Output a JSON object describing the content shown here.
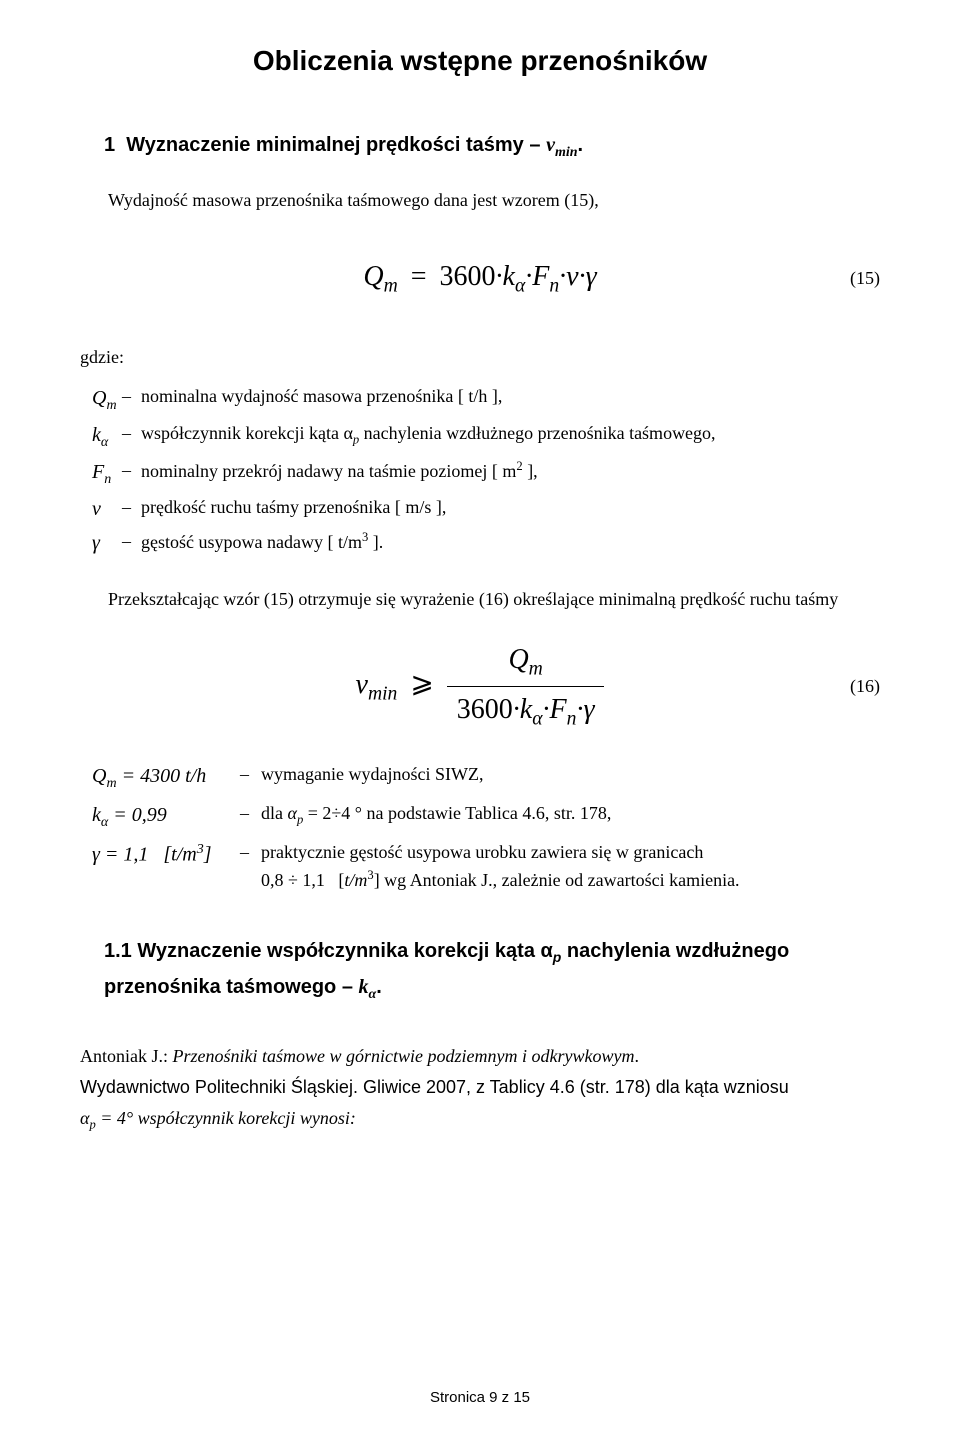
{
  "title": "Obliczenia wstępne przenośników",
  "section1": {
    "heading_prefix": "1",
    "heading": "Wyznaczenie minimalnej prędkości taśmy –",
    "heading_sym": "v",
    "heading_sub": "min",
    "intro": "Wydajność masowa przenośnika taśmowego dana jest wzorem (15),",
    "eq15": {
      "lhs": "Q",
      "lhs_sub": "m",
      "rhs_coeff": "3600",
      "k": "k",
      "k_sub": "α",
      "F": "F",
      "F_sub": "n",
      "v": "v",
      "g": "γ",
      "num": "(15)"
    },
    "gdzie": "gdzie:",
    "defs": [
      {
        "sym": "Q",
        "sub": "m",
        "desc": "nominalna wydajność masowa przenośnika [ t/h ],"
      },
      {
        "sym": "k",
        "sub": "α",
        "desc": "współczynnik korekcji kąta α<span class='sub'>p</span> nachylenia wzdłużnego przenośnika taśmowego,"
      },
      {
        "sym": "F",
        "sub": "n",
        "desc": "nominalny przekrój nadawy na taśmie poziomej [ m<span class='sup'>2</span> ],"
      },
      {
        "sym": "v",
        "sub": "",
        "desc": "prędkość ruchu taśmy przenośnika [ m/s ],"
      },
      {
        "sym": "γ",
        "sub": "",
        "desc": "gęstość usypowa nadawy [ t/m<span class='sup'>3</span> ]."
      }
    ],
    "transform": "Przekształcając wzór (15) otrzymuje się wyrażenie (16) określające minimalną prędkość ruchu taśmy",
    "eq16": {
      "lhs": "v",
      "lhs_sub": "min",
      "op": "⩾",
      "num_sym": "Q",
      "num_sub": "m",
      "den_coeff": "3600",
      "k": "k",
      "k_sub": "α",
      "F": "F",
      "F_sub": "n",
      "g": "γ",
      "eqnum": "(16)"
    },
    "values": [
      {
        "sym": "Q<span class='sub'>m</span> = 4300 <span>t/h</span>",
        "desc": "wymaganie wydajności SIWZ,"
      },
      {
        "sym": "k<span class='sub'>α</span> = 0,99",
        "desc": "dla <span class='math'>α<span class='sub'>p</span></span> = 2÷4 ° na podstawie Tablica 4.6, str. 178,"
      },
      {
        "sym": "γ = 1,1&nbsp;&nbsp;&nbsp;[<span>t/m</span><span class='sup'>3</span>]",
        "desc": "praktycznie gęstość usypowa urobku zawiera się w granicach<br><span class='cont'>0,8 ÷ 1,1&nbsp;&nbsp;&nbsp;[<span class='math'>t/m</span><span class='sup'>3</span>] wg Antoniak J., zależnie od zawartości kamienia.</span>"
      }
    ]
  },
  "section11": {
    "heading": "1.1 Wyznaczenie współczynnika korekcji kąta α<span class='sub' style='font-style:italic'>p</span> nachylenia wzdłużnego przenośnika taśmowego – <span class='math'>k<span class='sub'>α</span></span>."
  },
  "ref": {
    "line1a": "Antoniak J.: ",
    "line1b": "Przenośniki taśmowe w górnictwie podziemnym i odkrywkowym",
    "line1c": ".",
    "line2": "Wydawnictwo Politechniki Śląskiej. Gliwice 2007, z Tablicy 4.6 (str. 178) dla kąta wzniosu",
    "line3": "α<span class='sub'>p</span> = 4° współczynnik korekcji wynosi:"
  },
  "footer": "Stronica 9 z  15",
  "colors": {
    "text": "#000000",
    "bg": "#ffffff"
  },
  "typography": {
    "body_family": "Georgia/Times",
    "heading_family": "Verdana/Arial",
    "body_size_pt": 14,
    "h1_size_pt": 22,
    "eq_size_pt": 22
  }
}
